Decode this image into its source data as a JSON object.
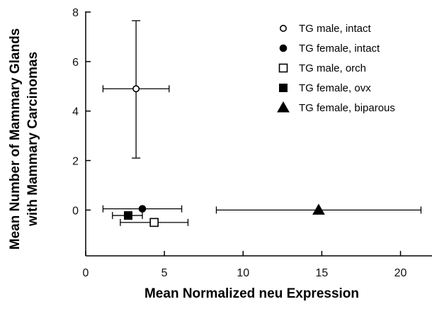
{
  "chart_data": {
    "type": "scatter",
    "xlabel": "Mean Normalized neu Expression",
    "ylabel_line1": "Mean Number of Mammary Glands",
    "ylabel_line2": "with Mammary Carcinomas",
    "xlim": [
      0,
      22
    ],
    "ylim": [
      -1.85,
      8
    ],
    "x_ticks": [
      0,
      5,
      10,
      15,
      20
    ],
    "y_ticks": [
      0,
      2,
      4,
      6,
      8
    ],
    "legend_position": "top-right",
    "series": [
      {
        "name": "TG male, intact",
        "marker": "circle-open",
        "x": 3.2,
        "y": 4.9,
        "x_err": [
          1.1,
          5.3
        ],
        "y_err": [
          2.1,
          7.65
        ]
      },
      {
        "name": "TG female, intact",
        "marker": "circle-filled",
        "x": 3.6,
        "y": 0.05,
        "x_err": [
          1.1,
          6.1
        ],
        "y_err": null
      },
      {
        "name": "TG male, orch",
        "marker": "square-open",
        "x": 4.35,
        "y": -0.5,
        "x_err": [
          2.2,
          6.5
        ],
        "y_err": null
      },
      {
        "name": "TG female, ovx",
        "marker": "square-filled",
        "x": 2.7,
        "y": -0.22,
        "x_err": [
          1.7,
          3.6
        ],
        "y_err": null
      },
      {
        "name": "TG female, biparous",
        "marker": "triangle-filled",
        "x": 14.8,
        "y": 0.0,
        "x_err": [
          8.3,
          21.3
        ],
        "y_err": null
      }
    ]
  }
}
